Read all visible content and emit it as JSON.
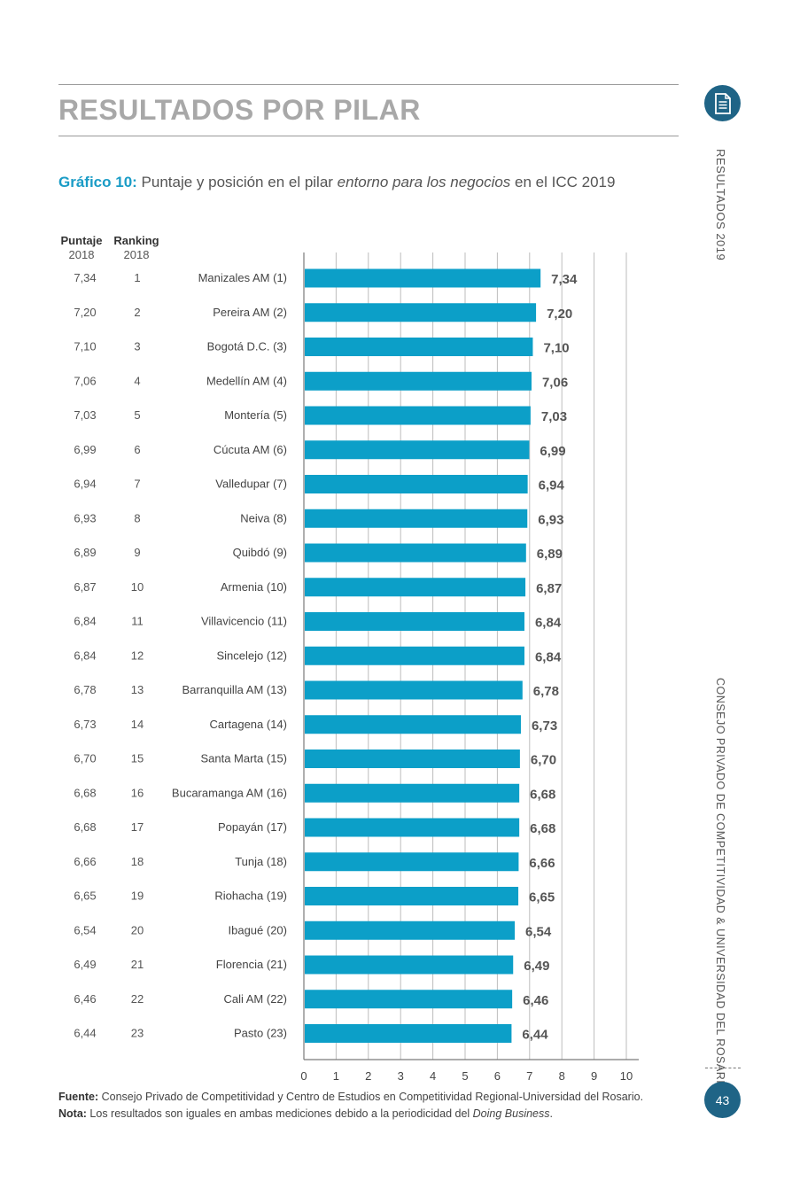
{
  "header": {
    "section_title": "RESULTADOS POR PILAR",
    "doc_icon": "document-icon"
  },
  "side": {
    "top_text": "RESULTADOS 2019",
    "bottom_text": "CONSEJO PRIVADO DE COMPETITIVIDAD & UNIVERSIDAD DEL ROSARIO"
  },
  "caption": {
    "number": "Gráfico 10:",
    "text_before": " Puntaje y posición en el pilar ",
    "text_italic": "entorno para los negocios",
    "text_after": " en el ICC 2019"
  },
  "columns": {
    "puntaje": [
      "Puntaje",
      "2018"
    ],
    "ranking": [
      "Ranking",
      "2018"
    ]
  },
  "footer": {
    "fuente_label": "Fuente:",
    "fuente_text": " Consejo Privado de Competitividad y Centro de Estudios en Competitividad Regional-Universidad del Rosario.",
    "nota_label": "Nota:",
    "nota_text": " Los resultados son iguales en ambas mediciones debido a la periodicidad del ",
    "nota_italic": "Doing Business",
    "nota_end": "."
  },
  "page_number": "43",
  "colors": {
    "bar": "#0c9fc8",
    "accent": "#1a9cc6",
    "badge": "#1f6486"
  },
  "chart_data": {
    "type": "bar",
    "orientation": "horizontal",
    "categories": [
      "Manizales AM (1)",
      "Pereira AM (2)",
      "Bogotá D.C. (3)",
      "Medellín AM (4)",
      "Montería (5)",
      "Cúcuta AM (6)",
      "Valledupar (7)",
      "Neiva (8)",
      "Quibdó (9)",
      "Armenia (10)",
      "Villavicencio (11)",
      "Sincelejo (12)",
      "Barranquilla AM (13)",
      "Cartagena (14)",
      "Santa Marta (15)",
      "Bucaramanga AM (16)",
      "Popayán (17)",
      "Tunja (18)",
      "Riohacha (19)",
      "Ibagué (20)",
      "Florencia (21)",
      "Cali AM (22)",
      "Pasto (23)"
    ],
    "values": [
      7.34,
      7.2,
      7.1,
      7.06,
      7.03,
      6.99,
      6.94,
      6.93,
      6.89,
      6.87,
      6.84,
      6.84,
      6.78,
      6.73,
      6.7,
      6.68,
      6.68,
      6.66,
      6.65,
      6.54,
      6.49,
      6.46,
      6.44
    ],
    "value_labels": [
      "7,34",
      "7,20",
      "7,10",
      "7,06",
      "7,03",
      "6,99",
      "6,94",
      "6,93",
      "6,89",
      "6,87",
      "6,84",
      "6,84",
      "6,78",
      "6,73",
      "6,70",
      "6,68",
      "6,68",
      "6,66",
      "6,65",
      "6,54",
      "6,49",
      "6,46",
      "6,44"
    ],
    "puntaje_2018": [
      "7,34",
      "7,20",
      "7,10",
      "7,06",
      "7,03",
      "6,99",
      "6,94",
      "6,93",
      "6,89",
      "6,87",
      "6,84",
      "6,84",
      "6,78",
      "6,73",
      "6,70",
      "6,68",
      "6,68",
      "6,66",
      "6,65",
      "6,54",
      "6,49",
      "6,46",
      "6,44"
    ],
    "ranking_2018": [
      "1",
      "2",
      "3",
      "4",
      "5",
      "6",
      "7",
      "8",
      "9",
      "10",
      "11",
      "12",
      "13",
      "14",
      "15",
      "16",
      "17",
      "18",
      "19",
      "20",
      "21",
      "22",
      "23"
    ],
    "xlim": [
      0,
      10
    ],
    "xticks": [
      "0",
      "1",
      "2",
      "3",
      "4",
      "5",
      "6",
      "7",
      "8",
      "9",
      "10"
    ],
    "grid": true
  }
}
